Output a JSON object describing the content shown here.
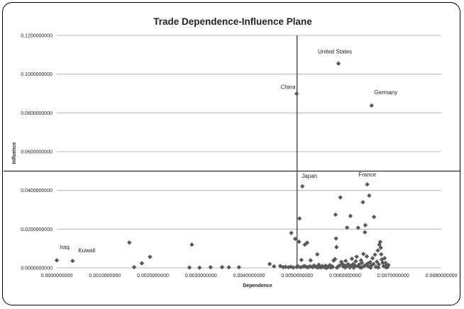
{
  "chart_data": {
    "type": "scatter",
    "title": "Trade Dependence-Influence Plane",
    "xlabel": "Dependence",
    "ylabel": "Influence",
    "xlim": [
      0,
      0.008
    ],
    "ylim": [
      0,
      0.12
    ],
    "x_ticks": [
      0,
      0.001,
      0.002,
      0.003,
      0.004,
      0.005,
      0.006,
      0.007,
      0.008
    ],
    "y_ticks": [
      0,
      0.02,
      0.04,
      0.06,
      0.08,
      0.1,
      0.12
    ],
    "x_tick_labels": [
      "0.0000000000",
      "0.0010000000",
      "0.0020000000",
      "0.0030000000",
      "0.0040000000",
      "0.0050000000",
      "0.0060000000",
      "0.0070000000",
      "0.0080000000"
    ],
    "y_tick_labels": [
      "0.0000000000",
      "0.0200000000",
      "0.0400000000",
      "0.0600000000",
      "0.0800000000",
      "0.1000000000",
      "0.1200000000"
    ],
    "grid": "horizontal",
    "reference_lines": {
      "x": 0.005,
      "y": 0.05
    },
    "marker_color": "#595959",
    "annotations": [
      {
        "text": "United States",
        "x": 0.00586,
        "y": 0.1055
      },
      {
        "text": "China",
        "x": 0.00499,
        "y": 0.0899
      },
      {
        "text": "Germany",
        "x": 0.00655,
        "y": 0.0838
      },
      {
        "text": "Japan",
        "x": 0.00511,
        "y": 0.0421
      },
      {
        "text": "France",
        "x": 0.00646,
        "y": 0.0431
      },
      {
        "text": "Iraq",
        "x": 0.0,
        "y": 0.0039
      },
      {
        "text": "Kuwait",
        "x": 0.00033,
        "y": 0.0036
      }
    ],
    "points": [
      [
        0.0,
        0.0039
      ],
      [
        0.00033,
        0.0036
      ],
      [
        0.00151,
        0.0131
      ],
      [
        0.00161,
        0.0004
      ],
      [
        0.00177,
        0.0024
      ],
      [
        0.00194,
        0.0057
      ],
      [
        0.00276,
        0.0002
      ],
      [
        0.00281,
        0.012
      ],
      [
        0.00297,
        0.0001
      ],
      [
        0.0032,
        0.0003
      ],
      [
        0.00344,
        0.0004
      ],
      [
        0.00358,
        0.0003
      ],
      [
        0.00379,
        0.0003
      ],
      [
        0.00443,
        0.002
      ],
      [
        0.00452,
        0.0008
      ],
      [
        0.00465,
        0.001
      ],
      [
        0.00471,
        0.0004
      ],
      [
        0.00476,
        0.0005
      ],
      [
        0.00482,
        0.0003
      ],
      [
        0.00487,
        0.0006
      ],
      [
        0.00488,
        0.018
      ],
      [
        0.00492,
        0.0002
      ],
      [
        0.00496,
        0.015
      ],
      [
        0.00499,
        0.0899
      ],
      [
        0.00499,
        0.0004
      ],
      [
        0.00502,
        0.0008
      ],
      [
        0.00504,
        0.0135
      ],
      [
        0.00505,
        0.0255
      ],
      [
        0.00507,
        0.0003
      ],
      [
        0.00509,
        0.0041
      ],
      [
        0.00511,
        0.0421
      ],
      [
        0.00512,
        0.0006
      ],
      [
        0.00515,
        0.001
      ],
      [
        0.00516,
        0.012
      ],
      [
        0.00519,
        0.0005
      ],
      [
        0.00521,
        0.013
      ],
      [
        0.00523,
        0.0003
      ],
      [
        0.00526,
        0.0008
      ],
      [
        0.00528,
        0.0039
      ],
      [
        0.0053,
        0.0006
      ],
      [
        0.00533,
        0.0004
      ],
      [
        0.00535,
        0.0012
      ],
      [
        0.00537,
        0.0009
      ],
      [
        0.0054,
        0.0004
      ],
      [
        0.00542,
        0.007
      ],
      [
        0.00545,
        0.0016
      ],
      [
        0.00547,
        0.0007
      ],
      [
        0.00549,
        0.0002
      ],
      [
        0.00552,
        0.001
      ],
      [
        0.00554,
        0.0005
      ],
      [
        0.00557,
        0.0004
      ],
      [
        0.00559,
        0.0011
      ],
      [
        0.00562,
        0.0006
      ],
      [
        0.00564,
        0.0003
      ],
      [
        0.00566,
        0.0008
      ],
      [
        0.00568,
        0.0014
      ],
      [
        0.0057,
        0.0002
      ],
      [
        0.00572,
        0.0009
      ],
      [
        0.00574,
        0.0005
      ],
      [
        0.00576,
        0.0038
      ],
      [
        0.00579,
        0.0045
      ],
      [
        0.0058,
        0.0275
      ],
      [
        0.00581,
        0.0152
      ],
      [
        0.00582,
        0.0107
      ],
      [
        0.00584,
        0.0004
      ],
      [
        0.00586,
        0.1055
      ],
      [
        0.00588,
        0.0012
      ],
      [
        0.0059,
        0.0364
      ],
      [
        0.00592,
        0.0031
      ],
      [
        0.00594,
        0.0021
      ],
      [
        0.00596,
        0.0007
      ],
      [
        0.00599,
        0.0011
      ],
      [
        0.00601,
        0.0036
      ],
      [
        0.00603,
        0.0009
      ],
      [
        0.00604,
        0.0208
      ],
      [
        0.00606,
        0.0019
      ],
      [
        0.00609,
        0.0004
      ],
      [
        0.00611,
        0.0268
      ],
      [
        0.00612,
        0.0011
      ],
      [
        0.00614,
        0.0047
      ],
      [
        0.00617,
        0.002
      ],
      [
        0.00619,
        0.0007
      ],
      [
        0.0062,
        0.0012
      ],
      [
        0.00622,
        0.0034
      ],
      [
        0.00624,
        0.0058
      ],
      [
        0.00626,
        0.001
      ],
      [
        0.00627,
        0.0207
      ],
      [
        0.00629,
        0.0017
      ],
      [
        0.00631,
        0.0003
      ],
      [
        0.00633,
        0.0039
      ],
      [
        0.00635,
        0.0026
      ],
      [
        0.00637,
        0.0339
      ],
      [
        0.00638,
        0.0072
      ],
      [
        0.00639,
        0.0009
      ],
      [
        0.00641,
        0.0184
      ],
      [
        0.00642,
        0.022
      ],
      [
        0.00643,
        0.0015
      ],
      [
        0.00645,
        0.0059
      ],
      [
        0.00646,
        0.0431
      ],
      [
        0.00647,
        0.0022
      ],
      [
        0.00648,
        0.0008
      ],
      [
        0.0065,
        0.0373
      ],
      [
        0.00652,
        0.003
      ],
      [
        0.00654,
        0.0012
      ],
      [
        0.00655,
        0.0838
      ],
      [
        0.00657,
        0.005
      ],
      [
        0.00659,
        0.002
      ],
      [
        0.0066,
        0.0263
      ],
      [
        0.00662,
        0.0068
      ],
      [
        0.00664,
        0.0005
      ],
      [
        0.00666,
        0.0032
      ],
      [
        0.00668,
        0.009
      ],
      [
        0.0067,
        0.0018
      ],
      [
        0.00671,
        0.012
      ],
      [
        0.00673,
        0.0134
      ],
      [
        0.00674,
        0.0104
      ],
      [
        0.00675,
        0.007
      ],
      [
        0.00676,
        0.0043
      ],
      [
        0.00678,
        0.0027
      ],
      [
        0.0068,
        0.0009
      ],
      [
        0.00682,
        0.005
      ],
      [
        0.00684,
        0.0026
      ],
      [
        0.00686,
        0.0012
      ],
      [
        0.00688,
        0.0004
      ],
      [
        0.0069,
        0.0015
      ],
      [
        0.00544,
        0.0002
      ],
      [
        0.00561,
        0.0
      ],
      [
        0.00583,
        0.0001
      ],
      [
        0.006,
        0.0002
      ],
      [
        0.00618,
        0.0001
      ],
      [
        0.00634,
        0.0002
      ],
      [
        0.00653,
        0.0001
      ],
      [
        0.00669,
        0.0002
      ],
      [
        0.00685,
        0.0003
      ],
      [
        0.0061,
        0.0003
      ]
    ]
  }
}
